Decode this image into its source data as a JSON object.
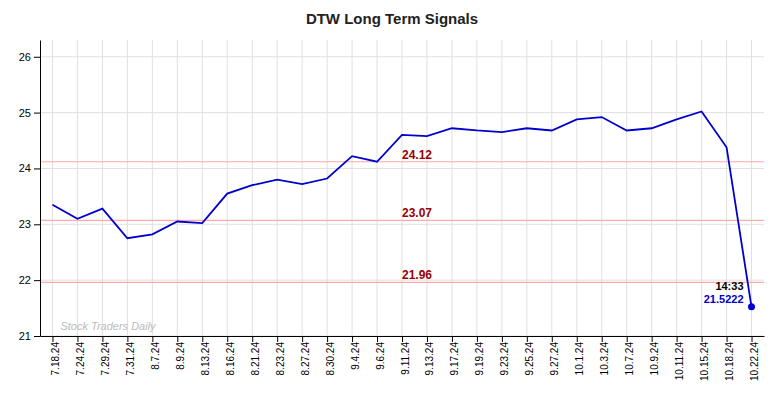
{
  "chart_data": {
    "type": "line",
    "title": "DTW Long Term Signals",
    "categories": [
      "7.18.24",
      "7.24.24",
      "7.29.24",
      "7.31.24",
      "8.7.24",
      "8.9.24",
      "8.13.24",
      "8.16.24",
      "8.21.24",
      "8.23.24",
      "8.27.24",
      "8.30.24",
      "9.4.24",
      "9.6.24",
      "9.11.24",
      "9.13.24",
      "9.17.24",
      "9.19.24",
      "9.23.24",
      "9.25.24",
      "9.27.24",
      "10.1.24",
      "10.3.24",
      "10.7.24",
      "10.9.24",
      "10.11.24",
      "10.15.24",
      "10.18.24",
      "10.22.24"
    ],
    "values": [
      23.35,
      23.1,
      23.28,
      22.75,
      22.82,
      23.05,
      23.02,
      23.55,
      23.7,
      23.8,
      23.72,
      23.82,
      24.22,
      24.12,
      24.6,
      24.58,
      24.72,
      24.68,
      24.65,
      24.72,
      24.68,
      24.88,
      24.92,
      24.68,
      24.72,
      24.88,
      25.02,
      24.38,
      21.5222
    ],
    "color": "#0000cc",
    "ylim": [
      21.0,
      26.3
    ],
    "yticks": [
      21,
      22,
      23,
      24,
      25,
      26
    ],
    "grid": true,
    "reference_lines": [
      {
        "value": 24.12,
        "label": "24.12",
        "color": "#ffaaaa",
        "label_color": "#990000"
      },
      {
        "value": 23.07,
        "label": "23.07",
        "color": "#ffaaaa",
        "label_color": "#990000"
      },
      {
        "value": 21.96,
        "label": "21.96",
        "color": "#ffaaaa",
        "label_color": "#990000"
      }
    ],
    "annotations": [
      {
        "text": "14:33",
        "category": "10.22.24"
      },
      {
        "text": "21.5222",
        "category": "10.22.24"
      },
      {
        "text": "Stock Traders Daily"
      }
    ]
  }
}
